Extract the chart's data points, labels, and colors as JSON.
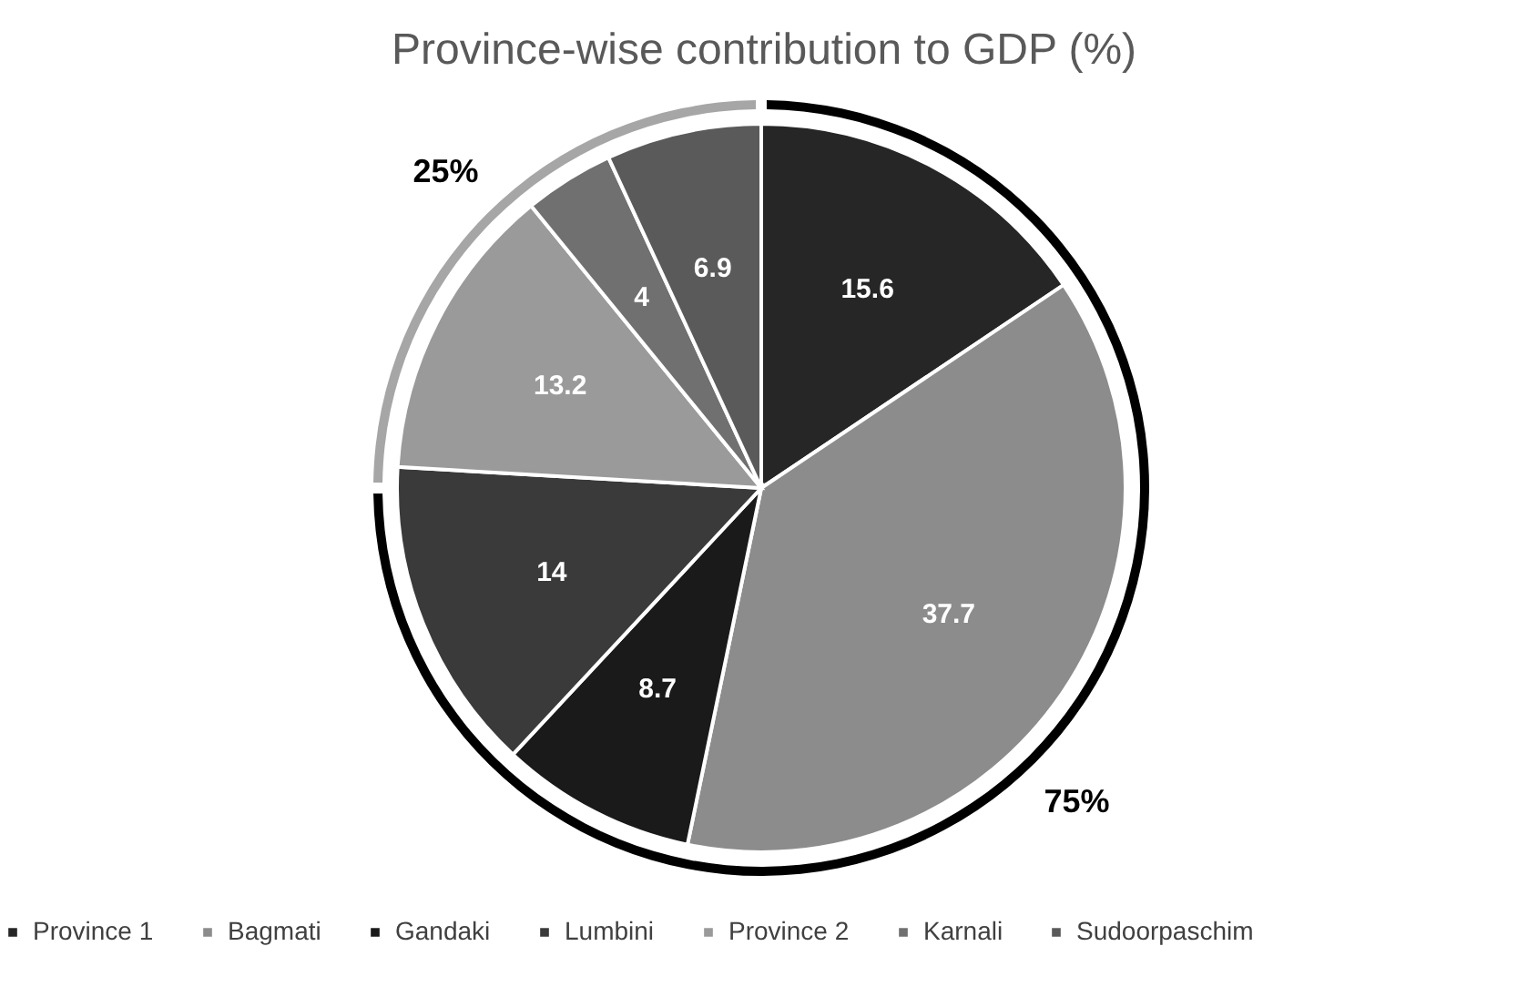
{
  "chart_data": [
    {
      "type": "pie",
      "title": "Province-wise contribution to GDP (%)",
      "categories": [
        "Province 1",
        "Bagmati",
        "Gandaki",
        "Lumbini",
        "Province 2",
        "Karnali",
        "Sudoorpaschim"
      ],
      "values": [
        15.6,
        37.7,
        8.7,
        14,
        13.2,
        4,
        6.9
      ],
      "colors": [
        "#262626",
        "#8c8c8c",
        "#1a1a1a",
        "#3a3a3a",
        "#9a9a9a",
        "#707070",
        "#5a5a5a"
      ],
      "data_labels": true,
      "legend": "bottom"
    },
    {
      "type": "donut",
      "categories": [
        null,
        null
      ],
      "values": [
        75,
        25
      ],
      "colors": [
        "#000000",
        "#a6a6a6"
      ],
      "value_labels": [
        "75%",
        "25%"
      ]
    }
  ]
}
